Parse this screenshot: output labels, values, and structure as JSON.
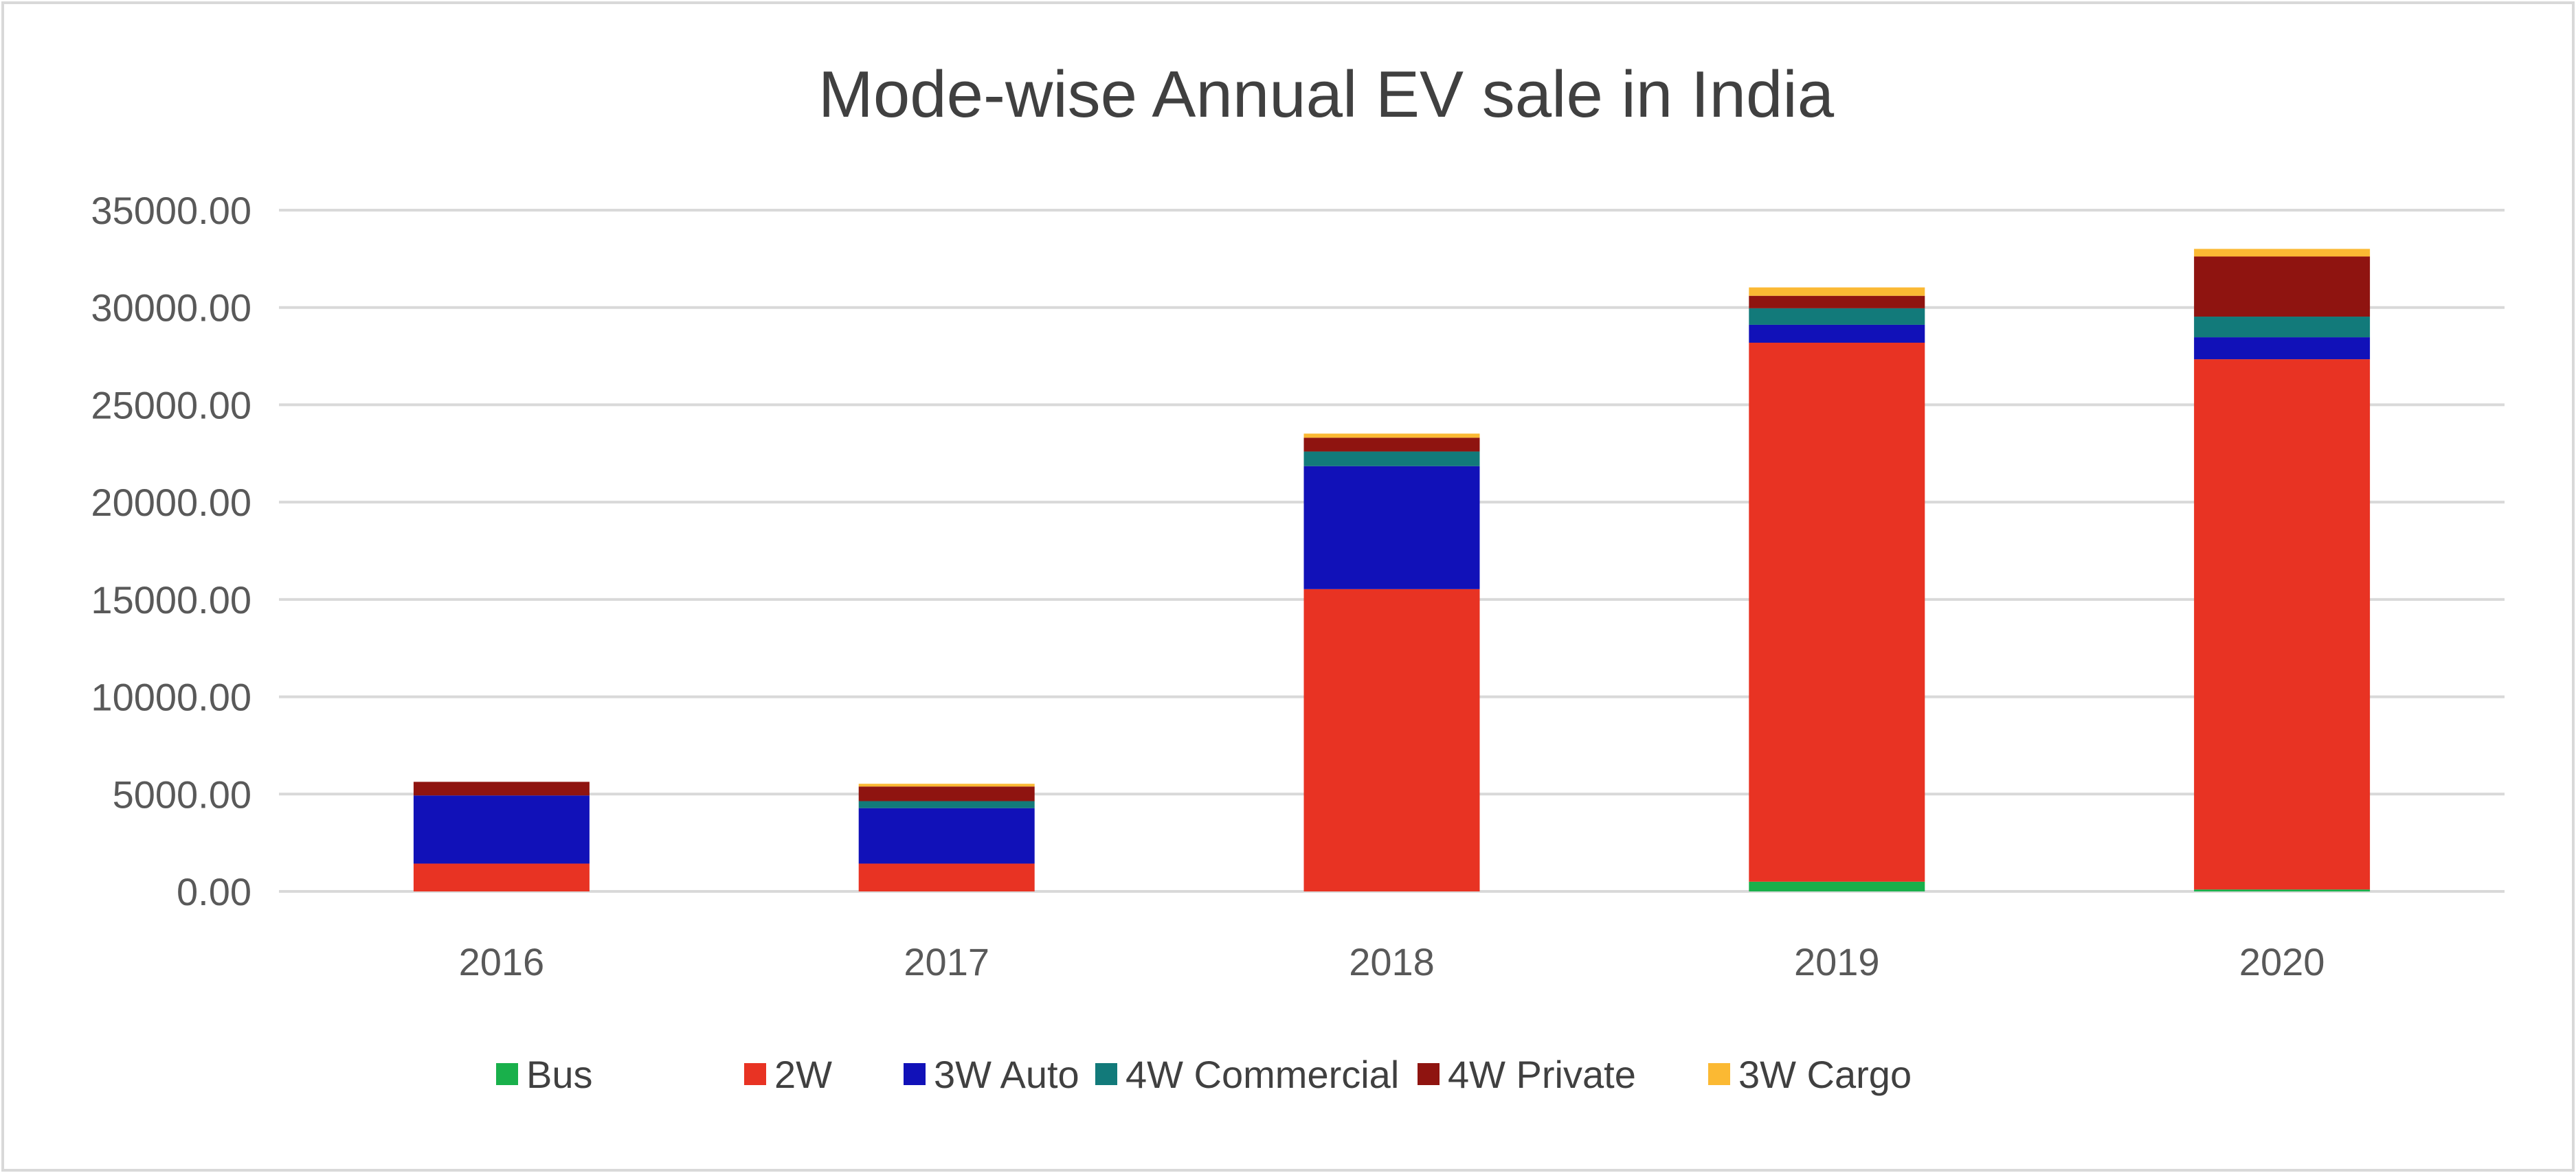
{
  "chart_data": {
    "type": "bar",
    "stacked": true,
    "title": "Mode-wise Annual EV sale in India",
    "xlabel": "",
    "ylabel": "",
    "ylim": [
      0,
      35000
    ],
    "yticks": [
      "0.00",
      "5000.00",
      "10000.00",
      "15000.00",
      "20000.00",
      "25000.00",
      "30000.00",
      "35000.00"
    ],
    "ytick_values": [
      0,
      5000,
      10000,
      15000,
      20000,
      25000,
      30000,
      35000
    ],
    "grid": true,
    "legend_position": "bottom",
    "categories": [
      "2016",
      "2017",
      "2018",
      "2019",
      "2020"
    ],
    "series": [
      {
        "name": "Bus",
        "color": "#19b04b",
        "values": [
          0,
          0,
          0,
          500,
          100
        ]
      },
      {
        "name": "2W",
        "color": "#e83323",
        "values": [
          1430,
          1430,
          15530,
          27690,
          27240
        ]
      },
      {
        "name": "3W Auto",
        "color": "#1111b8",
        "values": [
          3500,
          2850,
          6320,
          920,
          1130
        ]
      },
      {
        "name": "4W Commercial",
        "color": "#127a7a",
        "values": [
          0,
          360,
          750,
          850,
          1060
        ]
      },
      {
        "name": "4W Private",
        "color": "#8f1410",
        "values": [
          700,
          750,
          710,
          640,
          3090
        ]
      },
      {
        "name": "3W Cargo",
        "color": "#fbb933",
        "values": [
          0,
          140,
          210,
          430,
          390
        ]
      }
    ]
  }
}
